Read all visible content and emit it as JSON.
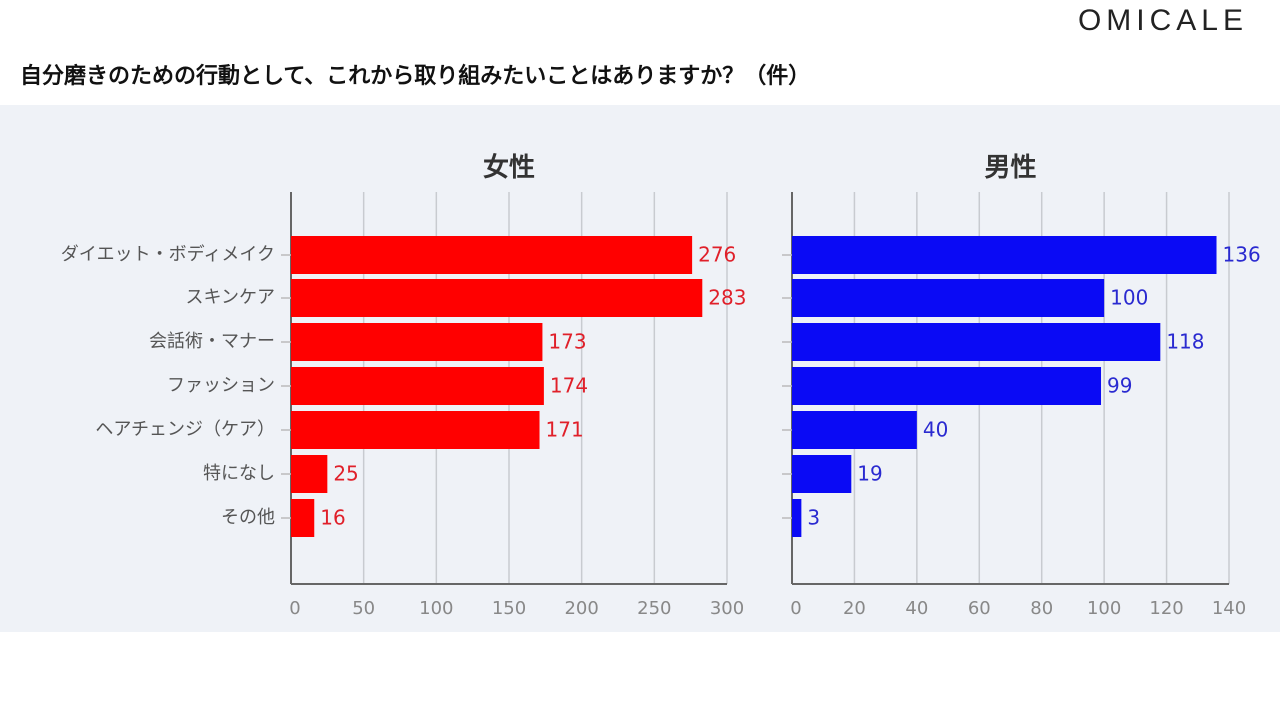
{
  "logo": "OMICALE",
  "title": "自分磨きのための行動として、これから取り組みたいことはありますか？（件）",
  "chart_data": [
    {
      "type": "bar",
      "orientation": "horizontal",
      "title": "女性",
      "categories": [
        "ダイエット・ボディメイク",
        "スキンケア",
        "会話術・マナー",
        "ファッション",
        "ヘアチェンジ（ケア）",
        "特になし",
        "その他"
      ],
      "values": [
        276,
        283,
        173,
        174,
        171,
        25,
        16
      ],
      "xlim": [
        0,
        300
      ],
      "ticks": [
        0,
        50,
        100,
        150,
        200,
        250,
        300
      ],
      "grid": true,
      "bar_color": "#ff0000",
      "label_color": "#e0202a"
    },
    {
      "type": "bar",
      "orientation": "horizontal",
      "title": "男性",
      "categories": [
        "ダイエット・ボディメイク",
        "スキンケア",
        "会話術・マナー",
        "ファッション",
        "ヘアチェンジ（ケア）",
        "特になし",
        "その他"
      ],
      "values": [
        136,
        100,
        118,
        99,
        40,
        19,
        3
      ],
      "xlim": [
        0,
        140
      ],
      "ticks": [
        0,
        20,
        40,
        60,
        80,
        100,
        120,
        140
      ],
      "grid": true,
      "bar_color": "#0a0af5",
      "label_color": "#2a2ad0"
    }
  ]
}
